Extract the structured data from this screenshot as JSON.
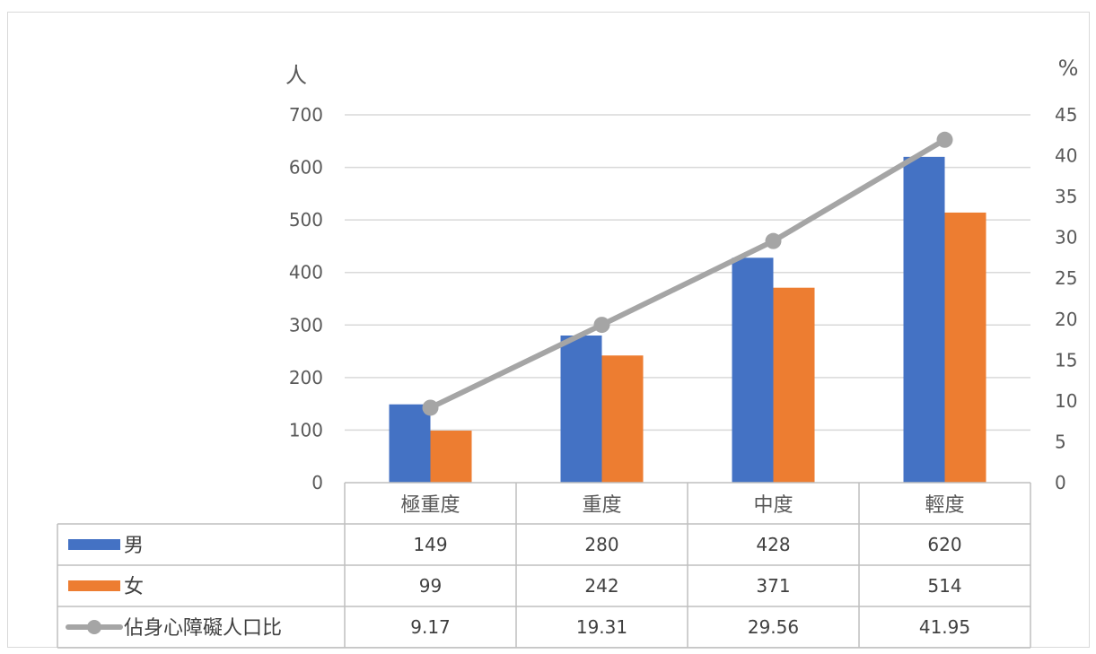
{
  "chart_data": {
    "type": "bar",
    "categories": [
      "極重度",
      "重度",
      "中度",
      "輕度"
    ],
    "series": [
      {
        "name": "男",
        "type": "bar",
        "axis": "left",
        "color": "#4472C4",
        "values": [
          149,
          280,
          428,
          620
        ]
      },
      {
        "name": "女",
        "type": "bar",
        "axis": "left",
        "color": "#ED7D31",
        "values": [
          99,
          242,
          371,
          514
        ]
      },
      {
        "name": "佔身心障礙人口比",
        "type": "line",
        "axis": "right",
        "color": "#A5A5A5",
        "values": [
          9.17,
          19.31,
          29.56,
          41.95
        ]
      }
    ],
    "y_left": {
      "label": "人",
      "min": 0,
      "max": 700,
      "ticks": [
        0,
        100,
        200,
        300,
        400,
        500,
        600,
        700
      ]
    },
    "y_right": {
      "label": "%",
      "min": 0,
      "max": 45,
      "ticks": [
        0,
        5,
        10,
        15,
        20,
        25,
        30,
        35,
        40,
        45
      ]
    },
    "data_table": true,
    "grid": true,
    "legend": "data-table"
  }
}
